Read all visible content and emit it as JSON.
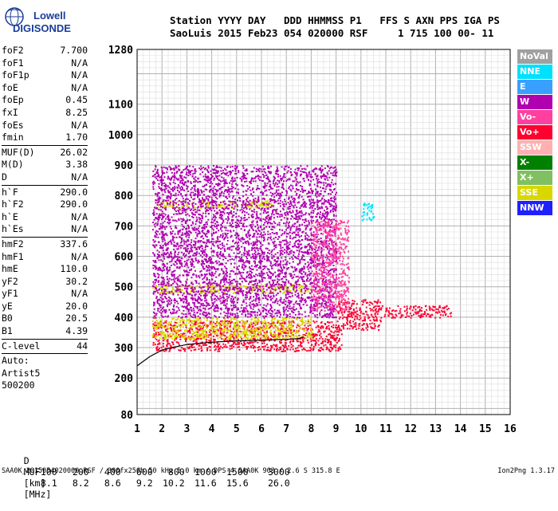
{
  "logo": {
    "line1": "Lowell",
    "line2": "DIGISONDE",
    "icon": "lowell-globe-icon"
  },
  "header": {
    "line1": "Station YYYY DAY   DDD HHMMSS P1   FFS S AXN PPS IGA PS",
    "line2": "SaoLuis 2015 Feb23 054 020000 RSF     1 715 100 00- 11"
  },
  "params": {
    "group1": [
      {
        "k": "foF2",
        "v": "7.700"
      },
      {
        "k": "foF1",
        "v": "N/A"
      },
      {
        "k": "foF1p",
        "v": "N/A"
      },
      {
        "k": "foE",
        "v": "N/A"
      },
      {
        "k": "foEp",
        "v": "0.45"
      },
      {
        "k": "fxI",
        "v": "8.25"
      },
      {
        "k": "foEs",
        "v": "N/A"
      },
      {
        "k": "fmin",
        "v": "1.70"
      }
    ],
    "group2": [
      {
        "k": "MUF(D)",
        "v": "26.02"
      },
      {
        "k": "M(D)",
        "v": "3.38"
      },
      {
        "k": "D",
        "v": "N/A"
      }
    ],
    "group3": [
      {
        "k": "h`F",
        "v": "290.0"
      },
      {
        "k": "h`F2",
        "v": "290.0"
      },
      {
        "k": "h`E",
        "v": "N/A"
      },
      {
        "k": "h`Es",
        "v": "N/A"
      }
    ],
    "group4": [
      {
        "k": "hmF2",
        "v": "337.6"
      },
      {
        "k": "hmF1",
        "v": "N/A"
      },
      {
        "k": "hmE",
        "v": "110.0"
      },
      {
        "k": "yF2",
        "v": "30.2"
      },
      {
        "k": "yF1",
        "v": "N/A"
      },
      {
        "k": "yE",
        "v": "20.0"
      },
      {
        "k": "B0",
        "v": "20.5"
      },
      {
        "k": "B1",
        "v": "4.39"
      }
    ],
    "clevel": {
      "k": "C-level",
      "v": "44"
    },
    "auto": [
      "Auto:",
      "Artist5",
      "500200"
    ]
  },
  "legend": [
    {
      "label": "NoVal",
      "color": "#a0a0a0"
    },
    {
      "label": "NNE",
      "color": "#00e0ff"
    },
    {
      "label": "E",
      "color": "#3aa0ff"
    },
    {
      "label": "W",
      "color": "#b000b0"
    },
    {
      "label": "Vo-",
      "color": "#ff40a0"
    },
    {
      "label": "Vo+",
      "color": "#ff0030"
    },
    {
      "label": "SSW",
      "color": "#ffb0b0"
    },
    {
      "label": "X-",
      "color": "#008000"
    },
    {
      "label": "X+",
      "color": "#80c060"
    },
    {
      "label": "SSE",
      "color": "#d8d800"
    },
    {
      "label": "NNW",
      "color": "#2020ff"
    }
  ],
  "chart_data": {
    "type": "scatter",
    "title": "",
    "xlabel": "",
    "ylabel": "",
    "xlim": [
      1,
      16
    ],
    "ylim": [
      80,
      1280
    ],
    "x_ticks": [
      1,
      2,
      3,
      4,
      5,
      6,
      7,
      8,
      9,
      10,
      11,
      12,
      13,
      14,
      15,
      16
    ],
    "y_ticks_labeled": [
      80,
      200,
      300,
      400,
      500,
      600,
      700,
      800,
      900,
      1000,
      1100,
      1280
    ],
    "y_scale": "range-spacing",
    "grid": true,
    "profile_curve": {
      "x": [
        1.0,
        1.5,
        2.0,
        2.5,
        3.0,
        4.0,
        5.0,
        6.0,
        7.0,
        7.5,
        7.7
      ],
      "y": [
        240,
        270,
        292,
        302,
        310,
        318,
        322,
        325,
        327,
        330,
        335
      ]
    },
    "trace_clusters": [
      {
        "name": "Vo+",
        "x": [
          1.6,
          9.2
        ],
        "y": [
          290,
          390
        ]
      },
      {
        "name": "Vo+",
        "x": [
          9.0,
          10.8
        ],
        "y": [
          360,
          460
        ]
      },
      {
        "name": "Vo+",
        "x": [
          10.8,
          13.6
        ],
        "y": [
          400,
          440
        ]
      },
      {
        "name": "SSE",
        "x": [
          1.6,
          8.0
        ],
        "y": [
          330,
          400
        ]
      },
      {
        "name": "SSE",
        "x": [
          1.8,
          6.5
        ],
        "y": [
          760,
          785
        ]
      },
      {
        "name": "SSE",
        "x": [
          1.6,
          8.0
        ],
        "y": [
          480,
          510
        ]
      },
      {
        "name": "W",
        "x": [
          1.6,
          9.0
        ],
        "y": [
          400,
          450
        ]
      },
      {
        "name": "W",
        "x": [
          1.6,
          9.0
        ],
        "y": [
          450,
          900
        ]
      },
      {
        "name": "Vo-",
        "x": [
          8.0,
          9.5
        ],
        "y": [
          420,
          720
        ]
      },
      {
        "name": "NNE",
        "x": [
          10.0,
          10.5
        ],
        "y": [
          720,
          780
        ]
      }
    ]
  },
  "bottom": {
    "d_row": {
      "label": "D",
      "values": [
        "100",
        "200",
        "400",
        "600",
        "800",
        "1000",
        "1500",
        "3000"
      ],
      "unit": "[km]"
    },
    "muf_row": {
      "label": "MUF",
      "values": [
        "8.1",
        "8.2",
        "8.6",
        "9.2",
        "10.2",
        "11.6",
        "15.6",
        "26.0"
      ],
      "unit": "[MHz]"
    }
  },
  "footer": "SAA0K_2015054020000.RSF / 300fx256h 50 kHz 5.0 km / DPS-4 SAA0K 903 / 2.6 S 315.8 E",
  "version": "Ion2Png 1.3.17"
}
